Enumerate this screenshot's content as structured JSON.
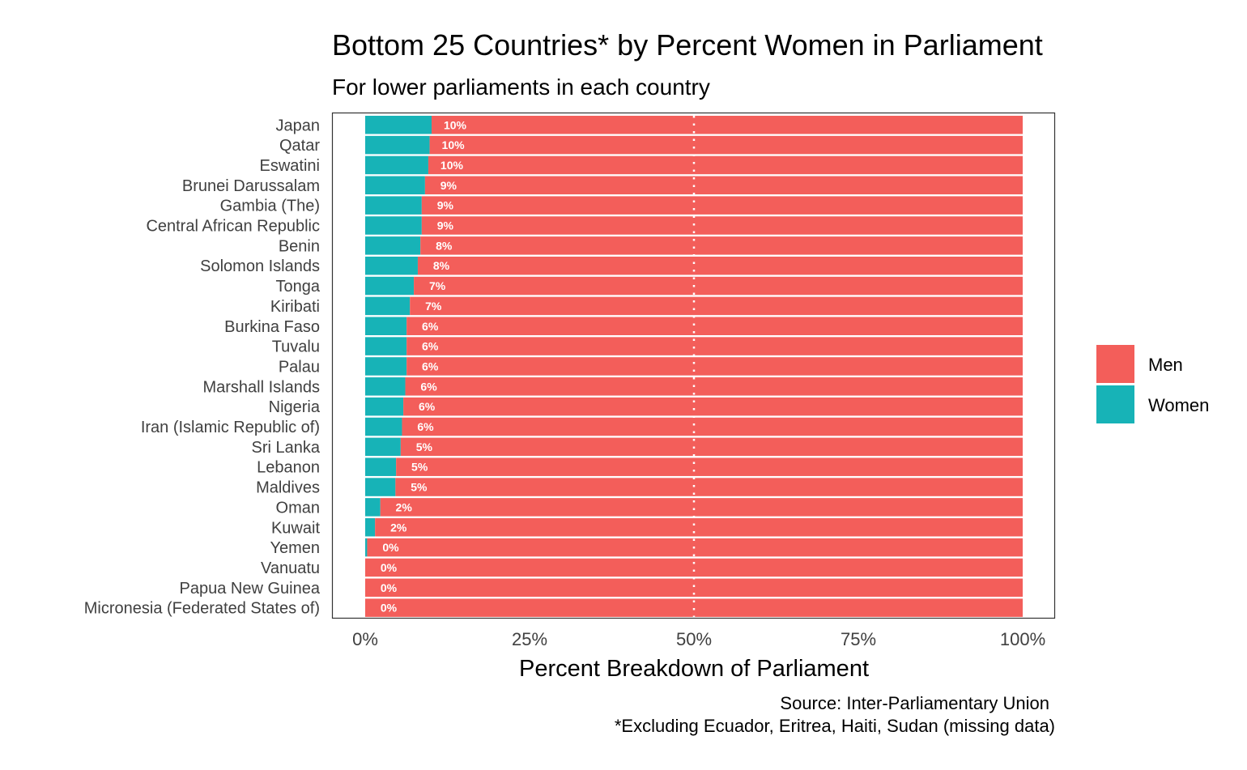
{
  "chart_data": {
    "type": "bar",
    "orientation": "horizontal",
    "stacked": "percent",
    "title": "Bottom 25 Countries* by Percent Women in Parliament",
    "subtitle": "For lower parliaments in each country",
    "xlabel": "Percent Breakdown of Parliament",
    "ylabel": "",
    "xlim": [
      0,
      100
    ],
    "xticks": [
      "0%",
      "25%",
      "50%",
      "75%",
      "100%"
    ],
    "reference_line": {
      "x": 50,
      "style": "dotted",
      "color": "#ffffff"
    },
    "caption_lines": [
      "Source: Inter-Parliamentary Union",
      "*Excluding Ecuador, Eritrea, Haiti, Sudan (missing data)"
    ],
    "legend": {
      "position": "right",
      "entries": [
        {
          "name": "Men",
          "color": "#F35E5A"
        },
        {
          "name": "Women",
          "color": "#17B3B7"
        }
      ]
    },
    "categories": [
      "Japan",
      "Qatar",
      "Eswatini",
      "Brunei Darussalam",
      "Gambia (The)",
      "Central African Republic",
      "Benin",
      "Solomon Islands",
      "Tonga",
      "Kiribati",
      "Burkina Faso",
      "Tuvalu",
      "Palau",
      "Marshall Islands",
      "Nigeria",
      "Iran (Islamic Republic of)",
      "Sri Lanka",
      "Lebanon",
      "Maldives",
      "Oman",
      "Kuwait",
      "Yemen",
      "Vanuatu",
      "Papua New Guinea",
      "Micronesia (Federated States of)"
    ],
    "labels": [
      "10%",
      "10%",
      "10%",
      "9%",
      "9%",
      "9%",
      "8%",
      "8%",
      "7%",
      "7%",
      "6%",
      "6%",
      "6%",
      "6%",
      "6%",
      "6%",
      "5%",
      "5%",
      "5%",
      "2%",
      "2%",
      "0%",
      "0%",
      "0%",
      "0%"
    ],
    "series": [
      {
        "name": "Women",
        "color": "#17B3B7",
        "values": [
          10.1,
          9.8,
          9.6,
          9.1,
          8.6,
          8.6,
          8.4,
          8.0,
          7.4,
          6.8,
          6.3,
          6.3,
          6.3,
          6.1,
          5.8,
          5.6,
          5.4,
          4.7,
          4.6,
          2.3,
          1.5,
          0.3,
          0,
          0,
          0
        ]
      },
      {
        "name": "Men",
        "color": "#F35E5A",
        "values": [
          89.9,
          90.2,
          90.4,
          90.9,
          91.4,
          91.4,
          91.6,
          92.0,
          92.6,
          93.2,
          93.7,
          93.7,
          93.7,
          93.9,
          94.2,
          94.4,
          94.6,
          95.3,
          95.4,
          97.7,
          98.5,
          99.7,
          100,
          100,
          100
        ]
      }
    ]
  }
}
